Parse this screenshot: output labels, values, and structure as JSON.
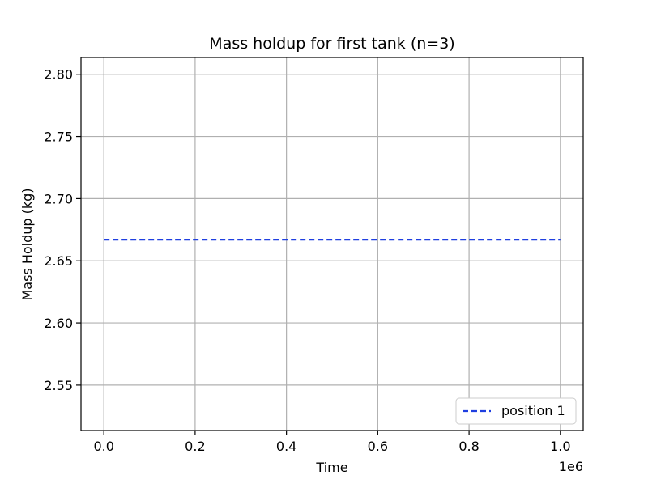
{
  "chart_data": {
    "type": "line",
    "title": "Mass holdup for first tank (n=3)",
    "xlabel": "Time",
    "ylabel": "Mass Holdup (kg)",
    "x_offset_label": "1e6",
    "xlim": [
      -0.05,
      1.05
    ],
    "ylim": [
      2.5135,
      2.8135
    ],
    "x_scale_multiplier": 1000000,
    "xticks": [
      0.0,
      0.2,
      0.4,
      0.6,
      0.8,
      1.0
    ],
    "xtick_labels": [
      "0.0",
      "0.2",
      "0.4",
      "0.6",
      "0.8",
      "1.0"
    ],
    "yticks": [
      2.55,
      2.6,
      2.65,
      2.7,
      2.75,
      2.8
    ],
    "ytick_labels": [
      "2.55",
      "2.60",
      "2.65",
      "2.70",
      "2.75",
      "2.80"
    ],
    "grid": true,
    "legend_position": "lower-right",
    "series": [
      {
        "name": "position 1",
        "color": "#1f3fe0",
        "style": "dashed",
        "x": [
          0.0,
          1.0
        ],
        "y": [
          2.667,
          2.667
        ]
      }
    ]
  }
}
